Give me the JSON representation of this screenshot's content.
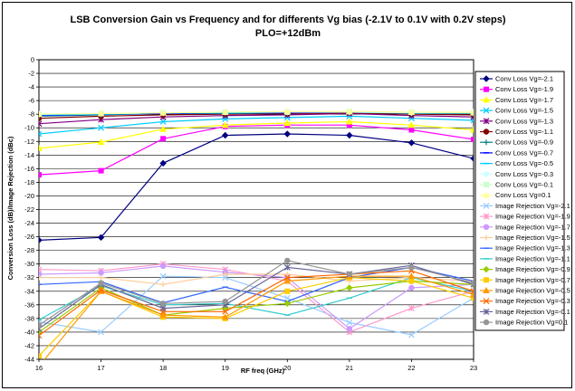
{
  "chart_data": {
    "type": "line",
    "title": "LSB Conversion Gain vs Frequency and for differents Vg bias (-2.1V to 0.1V with 0.2V steps)",
    "subtitle": "PLO=+12dBm",
    "xlabel": "RF freq (GHz)",
    "ylabel": "Conversion Loss (dB)/Image Rejection (dBc)",
    "x": [
      16,
      17,
      18,
      19,
      20,
      21,
      22,
      23
    ],
    "ylim": [
      -44,
      0
    ],
    "yticks": [
      0,
      -2,
      -4,
      -6,
      -8,
      -10,
      -12,
      -14,
      -16,
      -18,
      -20,
      -22,
      -24,
      -26,
      -28,
      -30,
      -32,
      -34,
      -36,
      -38,
      -40,
      -42,
      -44
    ],
    "grid": "horizontal",
    "legend_position": "right",
    "series": [
      {
        "name": "Conv Loss Vg=-2.1",
        "color": "#000080",
        "marker": "diamond",
        "values": [
          -26.5,
          -26.1,
          -15.2,
          -11.1,
          -10.9,
          -11.1,
          -12.2,
          -14.5
        ]
      },
      {
        "name": "Conv Loss Vg=-1.9",
        "color": "#ff00ff",
        "marker": "square",
        "values": [
          -16.9,
          -16.3,
          -11.6,
          -9.8,
          -9.6,
          -9.6,
          -10.3,
          -11.7
        ]
      },
      {
        "name": "Conv Loss Vg=-1.7",
        "color": "#ffff00",
        "marker": "triangle",
        "values": [
          -13.0,
          -12.1,
          -10.2,
          -9.6,
          -9.3,
          -9.1,
          -9.6,
          -10.3
        ]
      },
      {
        "name": "Conv Loss Vg=-1.5",
        "color": "#00ccff",
        "marker": "x",
        "values": [
          -10.9,
          -10.0,
          -9.1,
          -8.7,
          -8.5,
          -8.3,
          -8.6,
          -8.9
        ]
      },
      {
        "name": "Conv Loss Vg=-1.3",
        "color": "#800080",
        "marker": "star",
        "values": [
          -9.4,
          -8.8,
          -8.4,
          -8.2,
          -8.1,
          -7.9,
          -8.2,
          -8.4
        ]
      },
      {
        "name": "Conv Loss Vg=-1.1",
        "color": "#800000",
        "marker": "circle",
        "values": [
          -8.6,
          -8.3,
          -8.1,
          -8.0,
          -7.9,
          -7.8,
          -8.0,
          -8.1
        ]
      },
      {
        "name": "Conv Loss Vg=-0.9",
        "color": "#008080",
        "marker": "plus",
        "values": [
          -8.3,
          -8.1,
          -7.9,
          -7.9,
          -7.8,
          -7.7,
          -7.9,
          -7.9
        ]
      },
      {
        "name": "Conv Loss Vg=-0.7",
        "color": "#0000ff",
        "marker": "dash",
        "values": [
          -8.2,
          -8.0,
          -7.9,
          -7.8,
          -7.8,
          -7.7,
          -7.8,
          -7.8
        ]
      },
      {
        "name": "Conv Loss Vg=-0.5",
        "color": "#00ccff",
        "marker": "dash",
        "values": [
          -8.1,
          -8.0,
          -7.8,
          -7.8,
          -7.7,
          -7.7,
          -7.8,
          -7.8
        ]
      },
      {
        "name": "Conv Loss Vg=-0.3",
        "color": "#ccffff",
        "marker": "diamond",
        "values": [
          -8.0,
          -7.9,
          -7.8,
          -7.7,
          -7.7,
          -7.7,
          -7.8,
          -7.8
        ]
      },
      {
        "name": "Conv Loss Vg=-0.1",
        "color": "#ccffcc",
        "marker": "square",
        "values": [
          -8.0,
          -7.9,
          -7.8,
          -7.7,
          -7.7,
          -7.6,
          -7.7,
          -7.8
        ]
      },
      {
        "name": "Conv Loss Vg=0.1",
        "color": "#ffff99",
        "marker": "triangle",
        "values": [
          -8.0,
          -7.9,
          -7.8,
          -7.7,
          -7.6,
          -7.6,
          -7.7,
          -7.7
        ]
      },
      {
        "name": "Image Rejection Vg=-2.1",
        "color": "#99ccff",
        "marker": "x",
        "values": [
          -38.5,
          -40.0,
          -31.8,
          -32.0,
          -35.0,
          -38.6,
          -40.4,
          -35.0
        ]
      },
      {
        "name": "Image Rejection Vg=-1.9",
        "color": "#ff99cc",
        "marker": "star",
        "values": [
          -30.8,
          -31.0,
          -30.0,
          -30.8,
          -32.5,
          -40.0,
          -36.5,
          -34.0
        ]
      },
      {
        "name": "Image Rejection Vg=-1.7",
        "color": "#cc99ff",
        "marker": "circle",
        "values": [
          -31.5,
          -31.3,
          -30.3,
          -31.2,
          -32.0,
          -39.5,
          -33.5,
          -33.0
        ]
      },
      {
        "name": "Image Rejection Vg=-1.5",
        "color": "#ffcc99",
        "marker": "plus",
        "values": [
          -32.0,
          -32.0,
          -33.0,
          -31.5,
          -31.5,
          -32.5,
          -32.0,
          -32.5
        ]
      },
      {
        "name": "Image Rejection Vg=-1.3",
        "color": "#3366ff",
        "marker": "dash",
        "values": [
          -33.0,
          -32.6,
          -35.7,
          -33.4,
          -35.5,
          -32.0,
          -30.5,
          -32.5
        ]
      },
      {
        "name": "Image Rejection Vg=-1.1",
        "color": "#33cccc",
        "marker": "dash",
        "values": [
          -38.2,
          -33.2,
          -36.0,
          -35.8,
          -37.5,
          -35.0,
          -32.0,
          -34.0
        ]
      },
      {
        "name": "Image Rejection Vg=-0.9",
        "color": "#99cc00",
        "marker": "diamond",
        "values": [
          -40.0,
          -33.5,
          -37.5,
          -36.5,
          -35.8,
          -33.5,
          -32.5,
          -33.0
        ]
      },
      {
        "name": "Image Rejection Vg=-0.7",
        "color": "#ffcc00",
        "marker": "square",
        "values": [
          -43.5,
          -34.0,
          -37.8,
          -38.0,
          -34.0,
          -32.0,
          -32.5,
          -35.0
        ]
      },
      {
        "name": "Image Rejection Vg=-0.5",
        "color": "#ff9900",
        "marker": "triangle",
        "values": [
          -45.0,
          -34.0,
          -37.5,
          -37.8,
          -32.5,
          -31.8,
          -31.8,
          -34.5
        ]
      },
      {
        "name": "Image Rejection Vg=-0.3",
        "color": "#ff6600",
        "marker": "x",
        "values": [
          -40.5,
          -33.8,
          -37.0,
          -37.0,
          -32.0,
          -31.5,
          -31.0,
          -34.0
        ]
      },
      {
        "name": "Image Rejection Vg=-0.1",
        "color": "#666699",
        "marker": "star",
        "values": [
          -39.5,
          -33.0,
          -36.5,
          -36.0,
          -30.5,
          -31.5,
          -30.2,
          -33.0
        ]
      },
      {
        "name": "Image Rejection Vg=0.1",
        "color": "#969696",
        "marker": "circle",
        "values": [
          -39.0,
          -32.8,
          -35.8,
          -35.5,
          -29.5,
          -31.5,
          -30.5,
          -32.8
        ]
      }
    ]
  }
}
